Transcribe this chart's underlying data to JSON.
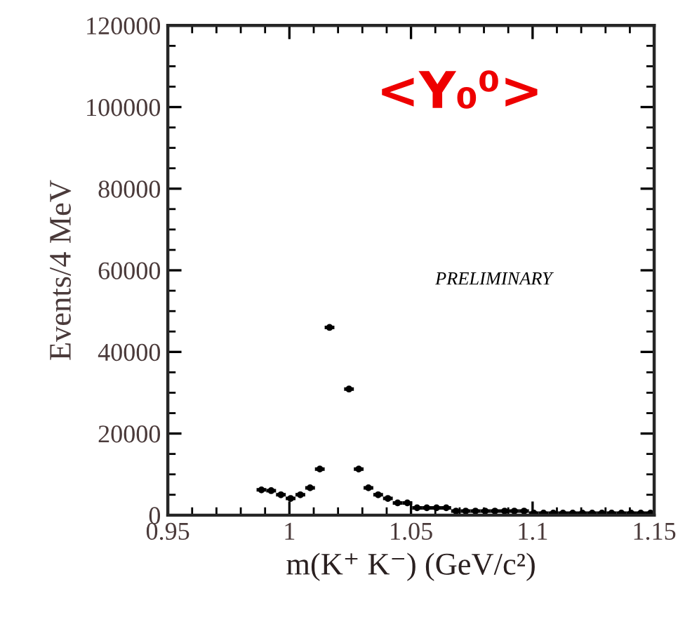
{
  "chart_data": {
    "type": "scatter",
    "xlabel": "m(K⁺ K⁻) (GeV/c²)",
    "ylabel": "Events/4 MeV",
    "annotations": [
      "<Y₀⁰>",
      "PRELIMINARY"
    ],
    "x": [
      0.9885,
      0.9925,
      0.9965,
      1.0005,
      1.0045,
      1.0085,
      1.0125,
      1.0165,
      1.0205,
      1.0245,
      1.0285,
      1.0325,
      1.0365,
      1.0405,
      1.0445,
      1.0485,
      1.0525,
      1.0565,
      1.0605,
      1.0645,
      1.0685,
      1.0725,
      1.0765,
      1.0805,
      1.0845,
      1.0885,
      1.0925,
      1.0965,
      1.1005,
      1.1045,
      1.1085,
      1.1125,
      1.1165,
      1.1205,
      1.1245,
      1.1285,
      1.1325,
      1.1365,
      1.1405,
      1.1445,
      1.1485
    ],
    "series": [
      {
        "color": "#000000",
        "values": [
          6200,
          6000,
          5000,
          4100,
          5000,
          6700,
          11300,
          46000,
          null,
          30900,
          11300,
          6700,
          5000,
          4100,
          3000,
          3000,
          1800,
          1800,
          1800,
          1800,
          1000,
          1000,
          1000,
          1000,
          1000,
          1000,
          1000,
          1000,
          500,
          500,
          500,
          500,
          500,
          500,
          500,
          500,
          500,
          500,
          500,
          500,
          500
        ],
        "xerrors": [
          0.002,
          0.002,
          0.002,
          0.002,
          0.002,
          0.002,
          0.002,
          0.002,
          null,
          0.002,
          0.002,
          0.002,
          0.002,
          0.002,
          0.002,
          0.002,
          0.002,
          0.002,
          0.002,
          0.002,
          0.002,
          0.002,
          0.002,
          0.002,
          0.002,
          0.002,
          0.002,
          0.002,
          0.002,
          0.002,
          0.002,
          0.002,
          0.002,
          0.002,
          0.002,
          0.002,
          0.002,
          0.002,
          0.002,
          0.002,
          0.002
        ]
      }
    ],
    "marker": "circle",
    "xlim": [
      0.95,
      1.15
    ],
    "xticks": [
      0.95,
      1,
      1.05,
      1.1,
      1.15
    ],
    "ylim": [
      0,
      120000
    ],
    "yticks": [
      0,
      20000,
      40000,
      60000,
      80000,
      100000,
      120000
    ],
    "grid": false,
    "legend": false
  }
}
